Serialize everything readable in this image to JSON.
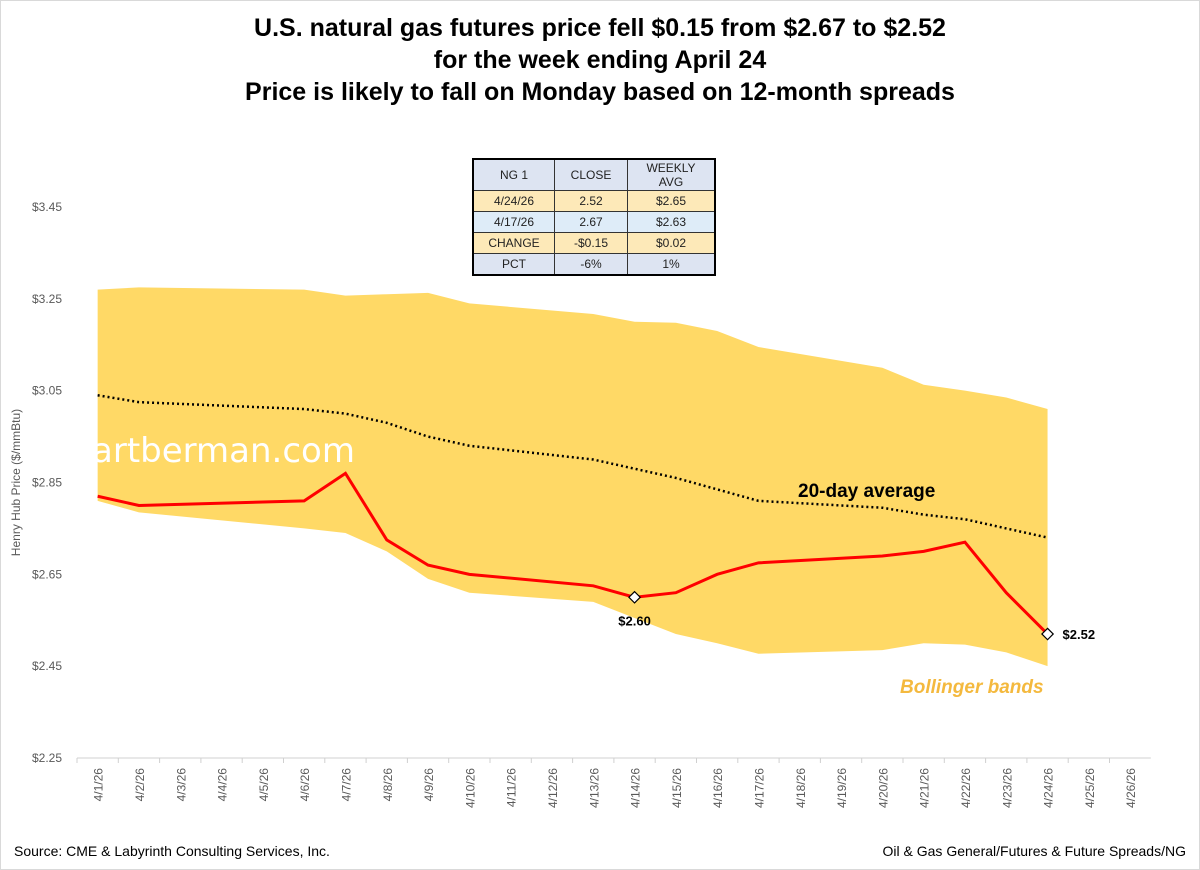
{
  "title_lines": [
    "U.S. natural gas futures price fell $0.15 from $2.67 to $2.52",
    "for the week ending April 24",
    "Price is likely to fall on Monday based on 12-month spreads"
  ],
  "table": {
    "headers": [
      "NG 1",
      "CLOSE",
      "WEEKLY AVG"
    ],
    "rows": [
      [
        "4/24/26",
        "2.52",
        "$2.65"
      ],
      [
        "4/17/26",
        "2.67",
        "$2.63"
      ],
      [
        "CHANGE",
        "-$0.15",
        "$0.02"
      ],
      [
        "PCT",
        "-6%",
        "1%"
      ]
    ]
  },
  "watermark": "artberman.com",
  "footer": {
    "source": "Source: CME & Labyrinth Consulting Services, Inc.",
    "path": "Oil & Gas General/Futures & Future Spreads/NG"
  },
  "colors": {
    "band": "#ffd966",
    "price": "#ff0000",
    "average": "#000000"
  },
  "chart_data": {
    "type": "line",
    "ylabel": "Henry Hub Price ($/mmBtu)",
    "ylim": [
      2.25,
      3.45
    ],
    "yticks": [
      "$2.25",
      "$2.45",
      "$2.65",
      "$2.85",
      "$3.05",
      "$3.25",
      "$3.45"
    ],
    "ytick_values": [
      2.25,
      2.45,
      2.65,
      2.85,
      3.05,
      3.25,
      3.45
    ],
    "categories": [
      "4/1/26",
      "4/2/26",
      "4/3/26",
      "4/4/26",
      "4/5/26",
      "4/6/26",
      "4/7/26",
      "4/8/26",
      "4/9/26",
      "4/10/26",
      "4/11/26",
      "4/12/26",
      "4/13/26",
      "4/14/26",
      "4/15/26",
      "4/16/26",
      "4/17/26",
      "4/18/26",
      "4/19/26",
      "4/20/26",
      "4/21/26",
      "4/22/26",
      "4/23/26",
      "4/24/26",
      "4/25/26",
      "4/26/26"
    ],
    "dates": [
      "4/1/26",
      "4/2/26",
      "4/6/26",
      "4/7/26",
      "4/8/26",
      "4/9/26",
      "4/10/26",
      "4/13/26",
      "4/14/26",
      "4/15/26",
      "4/16/26",
      "4/17/26",
      "4/20/26",
      "4/21/26",
      "4/22/26",
      "4/23/26",
      "4/24/26"
    ],
    "series": [
      {
        "name": "",
        "role": "price",
        "values": [
          2.82,
          2.8,
          2.81,
          2.87,
          2.725,
          2.67,
          2.65,
          2.625,
          2.6,
          2.61,
          2.65,
          2.675,
          2.69,
          2.7,
          2.72,
          2.61,
          2.52
        ]
      },
      {
        "name": "20-day average",
        "role": "average",
        "values": [
          3.04,
          3.025,
          3.01,
          3.0,
          2.98,
          2.95,
          2.93,
          2.9,
          2.88,
          2.86,
          2.835,
          2.81,
          2.795,
          2.78,
          2.77,
          2.75,
          2.73
        ]
      },
      {
        "name": "Bollinger  bands",
        "role": "upper",
        "values": [
          3.27,
          3.275,
          3.27,
          3.257,
          3.26,
          3.263,
          3.24,
          3.217,
          3.2,
          3.198,
          3.18,
          3.145,
          3.1,
          3.063,
          3.05,
          3.035,
          3.01
        ]
      },
      {
        "name": "Bollinger  bands",
        "role": "lower",
        "values": [
          2.81,
          2.785,
          2.75,
          2.74,
          2.7,
          2.64,
          2.61,
          2.59,
          2.555,
          2.52,
          2.5,
          2.477,
          2.485,
          2.5,
          2.497,
          2.48,
          2.45
        ]
      }
    ],
    "annotations": [
      {
        "date": "4/14/26",
        "value": 2.6,
        "label": "$2.60"
      },
      {
        "date": "4/24/26",
        "value": 2.52,
        "label": "$2.52"
      }
    ],
    "series_labels": {
      "average": "20-day average",
      "bands": "Bollinger  bands"
    },
    "grid": false,
    "legend": "none"
  }
}
